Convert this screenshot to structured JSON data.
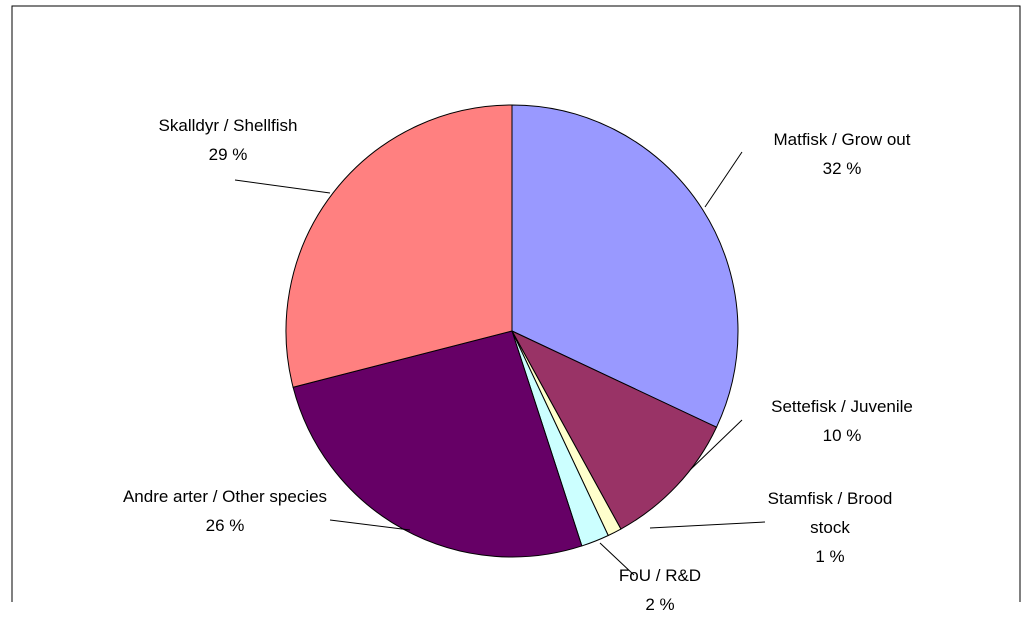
{
  "chart_data": {
    "type": "pie",
    "categories": [
      "Matfisk / Grow out",
      "Settefisk / Juvenile",
      "Stamfisk / Brood stock",
      "FoU / R&D",
      "Andre arter / Other species",
      "Skalldyr / Shellfish"
    ],
    "values": [
      32,
      10,
      1,
      2,
      26,
      29
    ],
    "value_labels": [
      "32 %",
      "10 %",
      "1 %",
      "2 %",
      "26 %",
      "29 %"
    ],
    "colors": [
      "#9999ff",
      "#993366",
      "#ffffcc",
      "#ccffff",
      "#660066",
      "#ff8080"
    ]
  }
}
